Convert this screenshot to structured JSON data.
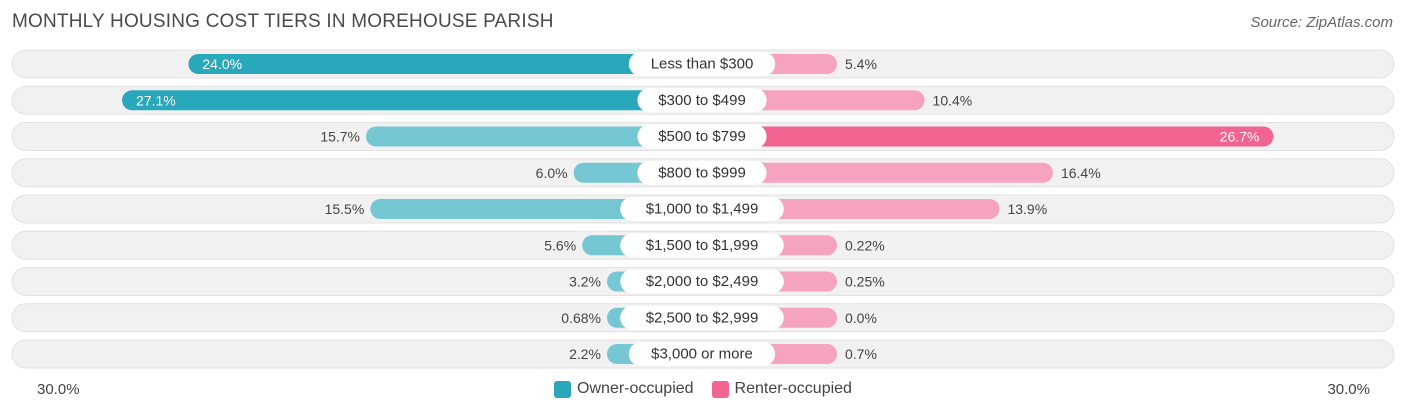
{
  "chart_data": {
    "type": "bar",
    "orientation": "diverging-horizontal",
    "title": "MONTHLY HOUSING COST TIERS IN MOREHOUSE PARISH",
    "source": "Source: ZipAtlas.com",
    "categories": [
      "Less than $300",
      "$300 to $499",
      "$500 to $799",
      "$800 to $999",
      "$1,000 to $1,499",
      "$1,500 to $1,999",
      "$2,000 to $2,499",
      "$2,500 to $2,999",
      "$3,000 or more"
    ],
    "series": [
      {
        "name": "Owner-occupied",
        "values": [
          24.0,
          27.1,
          15.7,
          6.0,
          15.5,
          5.6,
          3.2,
          0.68,
          2.2
        ],
        "labels": [
          "24.0%",
          "27.1%",
          "15.7%",
          "6.0%",
          "15.5%",
          "5.6%",
          "3.2%",
          "0.68%",
          "2.2%"
        ],
        "color_light": "#74c7d3",
        "color_dark": "#28a8ba"
      },
      {
        "name": "Renter-occupied",
        "values": [
          5.4,
          10.4,
          26.7,
          16.4,
          13.9,
          0.22,
          0.25,
          0.0,
          0.7
        ],
        "labels": [
          "5.4%",
          "10.4%",
          "26.7%",
          "16.4%",
          "13.9%",
          "0.22%",
          "0.25%",
          "0.0%",
          "0.7%"
        ],
        "color_light": "#f6a3bf",
        "color_dark": "#f0648f"
      }
    ],
    "xlim": [
      -30.0,
      30.0
    ],
    "axis_min_label": "30.0%",
    "axis_max_label": "30.0%",
    "legend_position": "bottom-center",
    "grid": false
  }
}
